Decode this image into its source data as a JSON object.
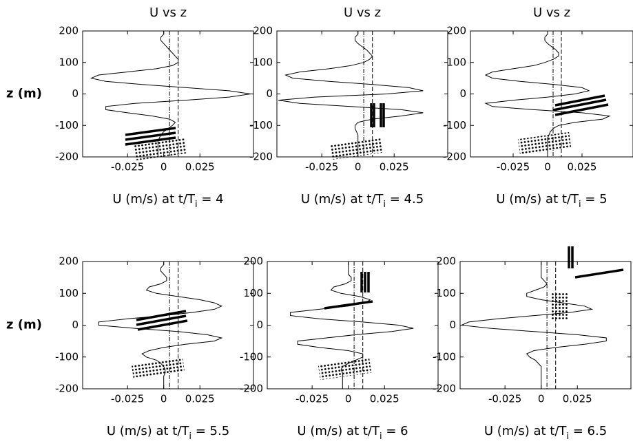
{
  "chart_data": [
    {
      "type": "line",
      "title": "U vs z",
      "ylabel": "z (m)",
      "xlabel": {
        "main": "U (m/s) at t/T",
        "sub": "i",
        "tail": " = 4"
      },
      "xlim": [
        -0.056,
        0.062
      ],
      "ylim": [
        -200,
        200
      ],
      "xticks": [
        -0.025,
        0,
        0.025
      ],
      "yticks": [
        -200,
        -100,
        0,
        100,
        200
      ],
      "reference_lines": [
        0.004,
        0.01
      ],
      "color": "#000000",
      "z": [
        200,
        190,
        180,
        170,
        160,
        150,
        140,
        130,
        120,
        110,
        100,
        90,
        80,
        70,
        60,
        50,
        40,
        30,
        20,
        10,
        0,
        -10,
        -20,
        -30,
        -40,
        -50,
        -60,
        -70,
        -80,
        -90,
        -100,
        -110,
        -120,
        -130,
        -140,
        -150,
        -160,
        -170,
        -180,
        -190,
        -200
      ],
      "values": [
        0,
        0,
        -0.002,
        -0.002,
        0,
        0.002,
        0.004,
        0.006,
        0.008,
        0.01,
        0.01,
        0.006,
        -0.005,
        -0.025,
        -0.045,
        -0.05,
        -0.04,
        -0.015,
        0.015,
        0.045,
        0.06,
        0.045,
        0.015,
        -0.02,
        -0.04,
        -0.04,
        -0.025,
        -0.008,
        0.004,
        0.008,
        0.006,
        0.003,
        0,
        -0.002,
        -0.003,
        -0.004,
        -0.004,
        -0.004,
        -0.004,
        -0.004,
        -0.004
      ]
    },
    {
      "type": "line",
      "title": "U vs z",
      "xlabel": {
        "main": "U (m/s) at t/T",
        "sub": "i",
        "tail": " = 4.5"
      },
      "xlim": [
        -0.056,
        0.062
      ],
      "ylim": [
        -200,
        200
      ],
      "xticks": [
        -0.025,
        0,
        0.025
      ],
      "yticks": [
        -200,
        -100,
        0,
        100,
        200
      ],
      "reference_lines": [
        0.004,
        0.01
      ],
      "color": "#000000",
      "z": [
        200,
        190,
        180,
        170,
        160,
        150,
        140,
        130,
        120,
        110,
        100,
        90,
        80,
        70,
        60,
        50,
        40,
        30,
        20,
        10,
        0,
        -10,
        -20,
        -30,
        -40,
        -50,
        -60,
        -70,
        -80,
        -90,
        -100,
        -110,
        -120,
        -130,
        -140,
        -150,
        -160,
        -170,
        -180,
        -190,
        -200
      ],
      "values": [
        0,
        0,
        -0.002,
        -0.002,
        0,
        0.003,
        0.006,
        0.008,
        0.01,
        0.008,
        0.004,
        -0.005,
        -0.02,
        -0.04,
        -0.05,
        -0.045,
        -0.02,
        0.01,
        0.035,
        0.045,
        0.02,
        -0.03,
        -0.055,
        -0.04,
        -0.005,
        0.03,
        0.045,
        0.03,
        0.01,
        0,
        -0.002,
        -0.002,
        -0.001,
        0,
        0,
        0,
        0,
        0,
        0,
        0,
        0
      ]
    },
    {
      "type": "line",
      "title": "U vs z",
      "xlabel": {
        "main": "U (m/s) at t/T",
        "sub": "i",
        "tail": " = 5"
      },
      "xlim": [
        -0.056,
        0.062
      ],
      "ylim": [
        -200,
        200
      ],
      "xticks": [
        -0.025,
        0,
        0.025
      ],
      "yticks": [
        -200,
        -100,
        0,
        100,
        200
      ],
      "reference_lines": [
        0.004,
        0.01
      ],
      "color": "#000000",
      "z": [
        200,
        190,
        180,
        170,
        160,
        150,
        140,
        130,
        120,
        110,
        100,
        90,
        80,
        70,
        60,
        50,
        40,
        30,
        20,
        10,
        0,
        -10,
        -20,
        -30,
        -40,
        -50,
        -60,
        -70,
        -80,
        -90,
        -100,
        -110,
        -120,
        -130,
        -140,
        -150,
        -160,
        -170,
        -180,
        -190,
        -200
      ],
      "values": [
        0,
        0,
        -0.002,
        -0.002,
        0,
        0.003,
        0.006,
        0.008,
        0.008,
        0.004,
        -0.002,
        -0.01,
        -0.025,
        -0.04,
        -0.045,
        -0.04,
        -0.02,
        0.005,
        0.025,
        0.03,
        0.02,
        0,
        -0.025,
        -0.045,
        -0.04,
        -0.01,
        0.025,
        0.045,
        0.04,
        0.02,
        0.008,
        0.004,
        0.002,
        0.001,
        0,
        0,
        0,
        0,
        0,
        0,
        0
      ]
    },
    {
      "type": "line",
      "ylabel": "z (m)",
      "xlabel": {
        "main": "U (m/s) at t/T",
        "sub": "i",
        "tail": " = 5.5"
      },
      "xlim": [
        -0.056,
        0.062
      ],
      "ylim": [
        -200,
        200
      ],
      "xticks": [
        -0.025,
        0,
        0.025
      ],
      "yticks": [
        -200,
        -100,
        0,
        100,
        200
      ],
      "reference_lines": [
        0.004,
        0.01
      ],
      "color": "#000000",
      "z": [
        200,
        190,
        180,
        170,
        160,
        150,
        140,
        130,
        120,
        110,
        100,
        90,
        80,
        70,
        60,
        50,
        40,
        30,
        20,
        10,
        0,
        -10,
        -20,
        -30,
        -40,
        -50,
        -60,
        -70,
        -80,
        -90,
        -100,
        -110,
        -120,
        -130,
        -140,
        -150,
        -160,
        -170,
        -180,
        -190,
        -200
      ],
      "values": [
        0,
        0,
        -0.002,
        -0.002,
        0,
        0.002,
        0.002,
        -0.002,
        -0.01,
        -0.012,
        -0.005,
        0.01,
        0.025,
        0.035,
        0.04,
        0.035,
        0.02,
        0,
        -0.025,
        -0.045,
        -0.045,
        -0.02,
        0.01,
        0.03,
        0.04,
        0.035,
        0.015,
        0,
        -0.01,
        -0.015,
        -0.012,
        -0.005,
        -0.002,
        0,
        0.001,
        0.001,
        0,
        0,
        0,
        0,
        0
      ]
    },
    {
      "type": "line",
      "xlabel": {
        "main": "U (m/s) at t/T",
        "sub": "i",
        "tail": " = 6"
      },
      "xlim": [
        -0.056,
        0.062
      ],
      "ylim": [
        -200,
        200
      ],
      "xticks": [
        -0.025,
        0,
        0.025
      ],
      "yticks": [
        -200,
        -100,
        0,
        100,
        200
      ],
      "reference_lines": [
        0.004,
        0.01
      ],
      "color": "#000000",
      "z": [
        200,
        190,
        180,
        170,
        160,
        150,
        140,
        130,
        120,
        110,
        100,
        90,
        80,
        70,
        60,
        50,
        40,
        30,
        20,
        10,
        0,
        -10,
        -20,
        -30,
        -40,
        -50,
        -60,
        -70,
        -80,
        -90,
        -100,
        -110,
        -120,
        -130,
        -140,
        -150,
        -160,
        -170,
        -180,
        -190,
        -200
      ],
      "values": [
        0,
        0,
        0,
        0,
        0,
        0.002,
        0.002,
        -0.002,
        -0.01,
        -0.012,
        -0.005,
        0.008,
        0.015,
        0.012,
        0,
        -0.02,
        -0.04,
        -0.04,
        -0.02,
        0.01,
        0.035,
        0.045,
        0.03,
        0.005,
        -0.015,
        -0.035,
        -0.035,
        -0.02,
        0,
        0.01,
        0.01,
        0.005,
        0,
        -0.004,
        -0.005,
        -0.004,
        -0.004,
        -0.004,
        -0.004,
        -0.004,
        -0.004
      ]
    },
    {
      "type": "line",
      "xlabel": {
        "main": "U (m/s) at t/T",
        "sub": "i",
        "tail": " = 6.5"
      },
      "xlim": [
        -0.056,
        0.062
      ],
      "ylim": [
        -200,
        200
      ],
      "xticks": [
        -0.025,
        0,
        0.025
      ],
      "yticks": [
        -200,
        -100,
        0,
        100,
        200
      ],
      "reference_lines": [
        0.004,
        0.01
      ],
      "color": "#000000",
      "z": [
        200,
        190,
        180,
        170,
        160,
        150,
        140,
        130,
        120,
        110,
        100,
        90,
        80,
        70,
        60,
        50,
        40,
        30,
        20,
        10,
        0,
        -10,
        -20,
        -30,
        -40,
        -50,
        -60,
        -70,
        -80,
        -90,
        -100,
        -110,
        -120,
        -130,
        -140,
        -150,
        -160,
        -170,
        -180,
        -190,
        -200
      ],
      "values": [
        0,
        0,
        0,
        0,
        0,
        0,
        0.002,
        0.004,
        0.002,
        -0.004,
        -0.01,
        -0.01,
        0,
        0.015,
        0.03,
        0.035,
        0.02,
        -0.005,
        -0.03,
        -0.05,
        -0.055,
        -0.035,
        -0.005,
        0.025,
        0.045,
        0.045,
        0.03,
        0.01,
        -0.005,
        -0.01,
        -0.008,
        -0.004,
        -0.002,
        0,
        0,
        0,
        0,
        0,
        0,
        0,
        0
      ]
    }
  ]
}
